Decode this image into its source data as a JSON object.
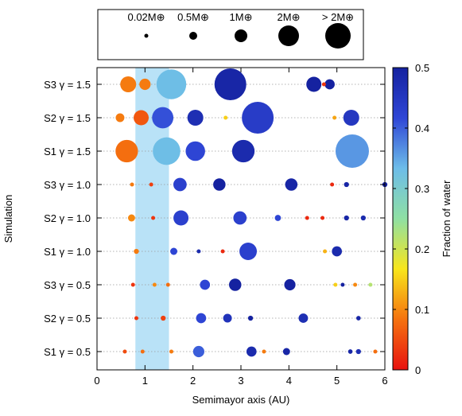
{
  "size_legend": {
    "entries": [
      {
        "label": "0.02M⊕",
        "mass": 0.02
      },
      {
        "label": "0.5M⊕",
        "mass": 0.5
      },
      {
        "label": "1M⊕",
        "mass": 1
      },
      {
        "label": "2M⊕",
        "mass": 2
      },
      {
        "label": "> 2M⊕",
        "mass": 3
      }
    ]
  },
  "chart_data": {
    "type": "scatter",
    "title": "",
    "xlabel": "Semimayor axis (AU)",
    "ylabel": "Simulation",
    "xlim": [
      0,
      6
    ],
    "x_ticks": [
      "0",
      "1",
      "2",
      "3",
      "4",
      "5",
      "6"
    ],
    "grid": "horizontal dotted",
    "shaded_region": {
      "x_start": 0.8,
      "x_end": 1.5,
      "color": "#b9e2f7"
    },
    "colorbar": {
      "label": "Fraction of water",
      "range": [
        0,
        0.5
      ],
      "ticks": [
        "0",
        "0.1",
        "0.2",
        "0.3",
        "0.4",
        "0.5"
      ],
      "colors": [
        "#e8120f",
        "#f5720f",
        "#f8e61b",
        "#8fe0a3",
        "#6dbde9",
        "#2f46d6",
        "#1522a0"
      ]
    },
    "categories": [
      "S1 γ = 0.5",
      "S2 γ = 0.5",
      "S3 γ = 0.5",
      "S1 γ = 1.0",
      "S2 γ = 1.0",
      "S3 γ = 1.0",
      "S1 γ = 1.5",
      "S2 γ = 1.5",
      "S3 γ = 1.5"
    ],
    "series": [
      {
        "row": 0,
        "points": [
          {
            "x": 0.58,
            "mass": 0.02,
            "water": 0.05
          },
          {
            "x": 0.95,
            "mass": 0.05,
            "water": 0.08
          },
          {
            "x": 1.55,
            "mass": 0.02,
            "water": 0.09
          },
          {
            "x": 2.12,
            "mass": 0.5,
            "water": 0.4
          },
          {
            "x": 3.22,
            "mass": 0.4,
            "water": 0.48
          },
          {
            "x": 3.48,
            "mass": 0.03,
            "water": 0.09
          },
          {
            "x": 3.95,
            "mass": 0.2,
            "water": 0.49
          },
          {
            "x": 5.28,
            "mass": 0.08,
            "water": 0.49
          },
          {
            "x": 5.45,
            "mass": 0.1,
            "water": 0.47
          },
          {
            "x": 5.8,
            "mass": 0.02,
            "water": 0.08
          }
        ]
      },
      {
        "row": 1,
        "points": [
          {
            "x": 0.82,
            "mass": 0.02,
            "water": 0.03
          },
          {
            "x": 1.38,
            "mass": 0.1,
            "water": 0.04
          },
          {
            "x": 2.17,
            "mass": 0.4,
            "water": 0.42
          },
          {
            "x": 2.72,
            "mass": 0.3,
            "water": 0.46
          },
          {
            "x": 3.2,
            "mass": 0.1,
            "water": 0.5
          },
          {
            "x": 4.3,
            "mass": 0.35,
            "water": 0.47
          },
          {
            "x": 5.45,
            "mass": 0.08,
            "water": 0.49
          }
        ]
      },
      {
        "row": 2,
        "points": [
          {
            "x": 0.75,
            "mass": 0.03,
            "water": 0.03
          },
          {
            "x": 1.2,
            "mass": 0.02,
            "water": 0.1
          },
          {
            "x": 1.48,
            "mass": 0.02,
            "water": 0.08
          },
          {
            "x": 2.25,
            "mass": 0.4,
            "water": 0.42
          },
          {
            "x": 2.88,
            "mass": 0.6,
            "water": 0.5
          },
          {
            "x": 4.02,
            "mass": 0.5,
            "water": 0.5
          },
          {
            "x": 4.97,
            "mass": 0.02,
            "water": 0.15
          },
          {
            "x": 5.12,
            "mass": 0.05,
            "water": 0.5
          },
          {
            "x": 5.38,
            "mass": 0.03,
            "water": 0.1
          },
          {
            "x": 5.7,
            "mass": 0.02,
            "water": 0.22
          }
        ]
      },
      {
        "row": 3,
        "points": [
          {
            "x": 0.82,
            "mass": 0.1,
            "water": 0.09
          },
          {
            "x": 1.6,
            "mass": 0.2,
            "water": 0.42
          },
          {
            "x": 2.12,
            "mass": 0.05,
            "water": 0.48
          },
          {
            "x": 2.62,
            "mass": 0.02,
            "water": 0.02
          },
          {
            "x": 3.15,
            "mass": 1.2,
            "water": 0.43
          },
          {
            "x": 4.75,
            "mass": 0.02,
            "water": 0.13
          },
          {
            "x": 5.0,
            "mass": 0.4,
            "water": 0.48
          }
        ]
      },
      {
        "row": 4,
        "points": [
          {
            "x": 0.72,
            "mass": 0.2,
            "water": 0.1
          },
          {
            "x": 1.17,
            "mass": 0.03,
            "water": 0.03
          },
          {
            "x": 1.75,
            "mass": 0.9,
            "water": 0.43
          },
          {
            "x": 2.98,
            "mass": 0.7,
            "water": 0.43
          },
          {
            "x": 3.77,
            "mass": 0.15,
            "water": 0.42
          },
          {
            "x": 4.38,
            "mass": 0.02,
            "water": 0.02
          },
          {
            "x": 4.7,
            "mass": 0.02,
            "water": 0.02
          },
          {
            "x": 5.2,
            "mass": 0.1,
            "water": 0.49
          },
          {
            "x": 5.55,
            "mass": 0.1,
            "water": 0.48
          }
        ]
      },
      {
        "row": 5,
        "points": [
          {
            "x": 0.73,
            "mass": 0.05,
            "water": 0.09
          },
          {
            "x": 1.13,
            "mass": 0.05,
            "water": 0.04
          },
          {
            "x": 1.73,
            "mass": 0.7,
            "water": 0.43
          },
          {
            "x": 2.55,
            "mass": 0.6,
            "water": 0.5
          },
          {
            "x": 4.05,
            "mass": 0.6,
            "water": 0.49
          },
          {
            "x": 4.9,
            "mass": 0.02,
            "water": 0.02
          },
          {
            "x": 5.2,
            "mass": 0.1,
            "water": 0.49
          },
          {
            "x": 6.0,
            "mass": 0.1,
            "water": 0.5
          }
        ]
      },
      {
        "row": 6,
        "points": [
          {
            "x": 0.62,
            "mass": 2.0,
            "water": 0.08
          },
          {
            "x": 1.45,
            "mass": 3.0,
            "water": 0.33
          },
          {
            "x": 2.05,
            "mass": 1.5,
            "water": 0.42
          },
          {
            "x": 3.05,
            "mass": 2.0,
            "water": 0.48
          },
          {
            "x": 5.32,
            "mass": 4.5,
            "water": 0.36
          }
        ]
      },
      {
        "row": 7,
        "points": [
          {
            "x": 0.48,
            "mass": 0.3,
            "water": 0.09
          },
          {
            "x": 0.92,
            "mass": 0.9,
            "water": 0.06
          },
          {
            "x": 1.37,
            "mass": 1.8,
            "water": 0.41
          },
          {
            "x": 2.05,
            "mass": 1.0,
            "water": 0.47
          },
          {
            "x": 2.68,
            "mass": 0.02,
            "water": 0.15
          },
          {
            "x": 3.35,
            "mass": 4.0,
            "water": 0.44
          },
          {
            "x": 4.95,
            "mass": 0.02,
            "water": 0.12
          },
          {
            "x": 5.3,
            "mass": 1.0,
            "water": 0.45
          }
        ]
      },
      {
        "row": 8,
        "points": [
          {
            "x": 0.65,
            "mass": 1.0,
            "water": 0.09
          },
          {
            "x": 1.0,
            "mass": 0.5,
            "water": 0.09
          },
          {
            "x": 1.55,
            "mass": 3.5,
            "water": 0.33
          },
          {
            "x": 2.78,
            "mass": 4.0,
            "water": 0.49
          },
          {
            "x": 4.52,
            "mass": 0.9,
            "water": 0.5
          },
          {
            "x": 4.73,
            "mass": 0.02,
            "water": 0.03
          },
          {
            "x": 4.85,
            "mass": 0.4,
            "water": 0.5
          }
        ]
      }
    ]
  }
}
